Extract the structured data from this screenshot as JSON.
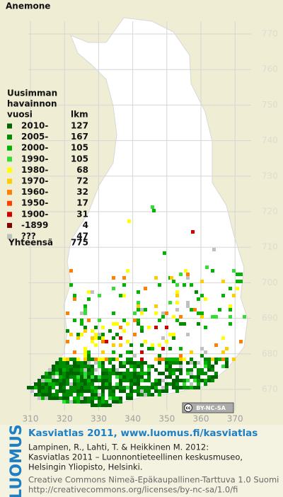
{
  "title": "Anemone",
  "legend": {
    "header": [
      "Uusimman",
      "havainnon",
      "vuosi"
    ],
    "count_header": "lkm",
    "items": [
      {
        "label": "2010-",
        "count": 127,
        "color": "#006400"
      },
      {
        "label": "2005-",
        "count": 167,
        "color": "#008c00"
      },
      {
        "label": "2000-",
        "count": 105,
        "color": "#00b400"
      },
      {
        "label": "1990-",
        "count": 105,
        "color": "#33dd33"
      },
      {
        "label": "1980-",
        "count": 68,
        "color": "#ffff00"
      },
      {
        "label": "1970-",
        "count": 72,
        "color": "#ffcc00"
      },
      {
        "label": "1960-",
        "count": 32,
        "color": "#ff8000"
      },
      {
        "label": "1950-",
        "count": 17,
        "color": "#ff4000"
      },
      {
        "label": "1900-",
        "count": 31,
        "color": "#d00000"
      },
      {
        "label": "-1899",
        "count": 4,
        "color": "#800000"
      },
      {
        "label": "???",
        "count": 47,
        "color": "#c0c0c0"
      }
    ],
    "total_label": "Yhteensä",
    "total": 775
  },
  "grid_y": [
    770,
    760,
    750,
    740,
    730,
    720,
    710,
    700,
    690,
    680,
    670
  ],
  "grid_x": [
    310,
    320,
    330,
    340,
    350,
    360,
    370
  ],
  "badge": {
    "cc": "cc",
    "text": "BY-NC-SA"
  },
  "footer": {
    "logo": "LUOMUS",
    "headline": "Kasviatlas 2011, www.luomus.fi/kasviatlas",
    "citation": [
      "Lampinen, R., Lahti, T. & Heikkinen M. 2012:",
      "Kasviatlas 2011 – Luonnontieteellinen keskusmuseo,",
      "Helsingin Yliopisto, Helsinki."
    ],
    "license": [
      "Creative Commons Nimeä-Epäkaupallinen-Tarttuva 1.0 Suomi",
      "http://creativecommons.org/licenses/by-nc-sa/1.0/fi"
    ]
  }
}
